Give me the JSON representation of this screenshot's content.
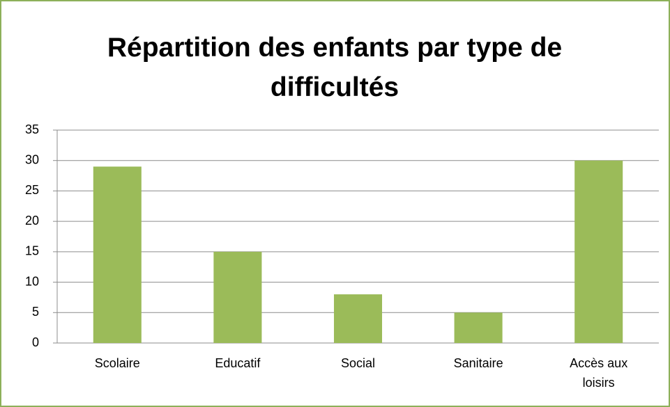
{
  "chart_data": {
    "type": "bar",
    "title": "Répartition des enfants par type de difficultés",
    "categories": [
      "Scolaire",
      "Educatif",
      "Social",
      "Sanitaire",
      "Accès aux loisirs"
    ],
    "values": [
      29,
      15,
      8,
      5,
      30
    ],
    "color": "#9bbb59",
    "ylim": [
      0,
      35
    ],
    "yticks": [
      0,
      5,
      10,
      15,
      20,
      25,
      30,
      35
    ],
    "grid": true
  }
}
